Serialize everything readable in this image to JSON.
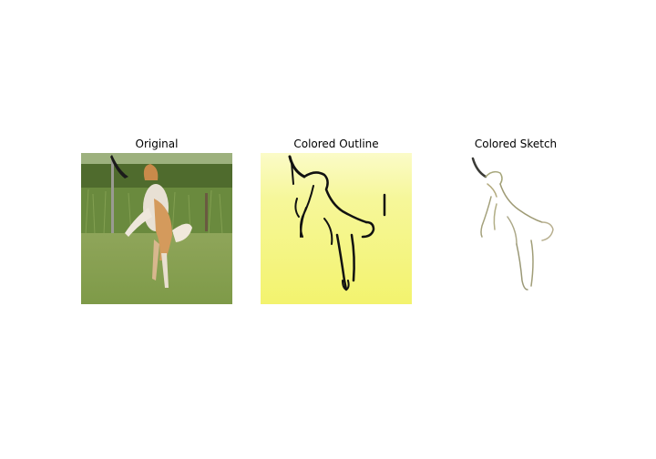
{
  "figure": {
    "panels": [
      {
        "title": "Original",
        "content": "photo of a dog jumping to catch a frisbee on grass"
      },
      {
        "title": "Colored Outline",
        "content": "dog outline drawn in dark lines on a yellow background"
      },
      {
        "title": "Colored Sketch",
        "content": "faint colored line sketch of the dog on white"
      }
    ]
  }
}
